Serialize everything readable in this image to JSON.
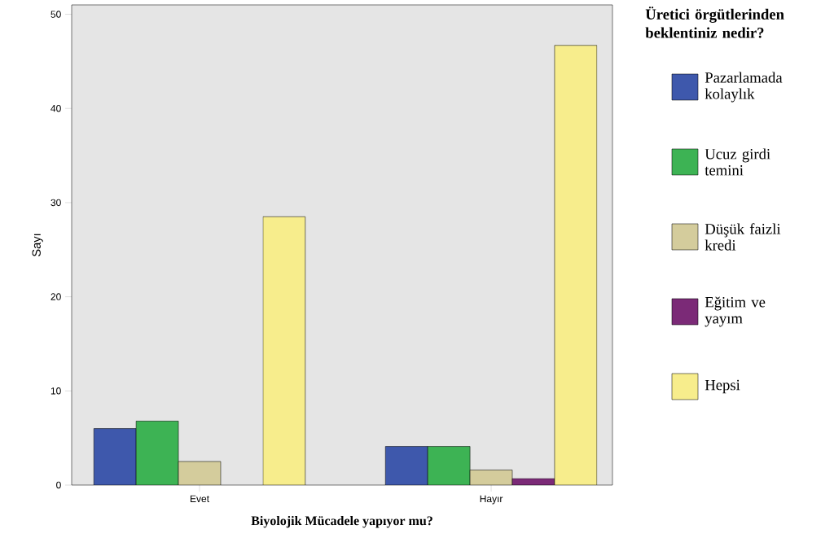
{
  "chart_data": {
    "type": "bar",
    "categories": [
      "Evet",
      "Hayır"
    ],
    "xlabel": "Biyolojik Mücadele yapıyor mu?",
    "ylabel": "Sayı",
    "legend_title": "Üretici örgütlerinden beklentiniz nedir?",
    "ylim": [
      0,
      51
    ],
    "yticks": [
      0,
      10,
      20,
      30,
      40,
      50
    ],
    "grid": false,
    "legend": "right",
    "series": [
      {
        "name": "Pazarlamada kolaylık",
        "color": "#3e58ac",
        "values": [
          6.0,
          4.1
        ]
      },
      {
        "name": "Ucuz girdi temini",
        "color": "#3db354",
        "values": [
          6.8,
          4.1
        ]
      },
      {
        "name": "Düşük faizli kredi",
        "color": "#d4cc9c",
        "values": [
          2.5,
          1.6
        ]
      },
      {
        "name": "Eğitim ve yayım",
        "color": "#7b2a77",
        "values": [
          null,
          0.7
        ]
      },
      {
        "name": "Hepsi",
        "color": "#f7ed8c",
        "values": [
          28.5,
          46.7
        ]
      }
    ]
  }
}
